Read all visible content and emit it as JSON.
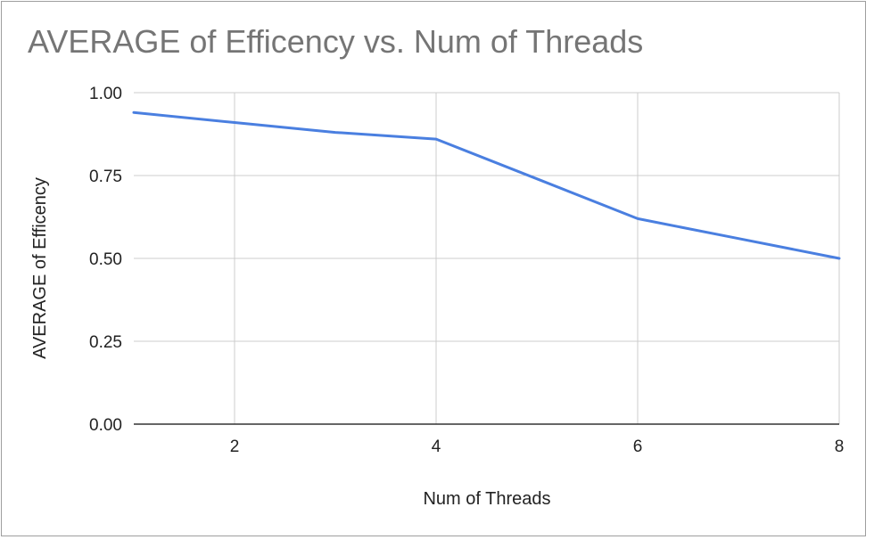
{
  "chart_data": {
    "type": "line",
    "title": "AVERAGE of Efficency vs. Num of Threads",
    "xlabel": "Num of Threads",
    "ylabel": "AVERAGE of Efficency",
    "xlim": [
      1,
      8
    ],
    "ylim": [
      0,
      1
    ],
    "x_ticks": [
      "2",
      "4",
      "6",
      "8"
    ],
    "y_ticks": [
      "0.00",
      "0.25",
      "0.50",
      "0.75",
      "1.00"
    ],
    "grid": true,
    "legend": "none",
    "series": [
      {
        "color": "#4a7fe0",
        "x": [
          1,
          2,
          3,
          4,
          5,
          6,
          7,
          8
        ],
        "values": [
          0.94,
          0.91,
          0.88,
          0.86,
          0.74,
          0.62,
          0.56,
          0.5
        ]
      }
    ]
  }
}
